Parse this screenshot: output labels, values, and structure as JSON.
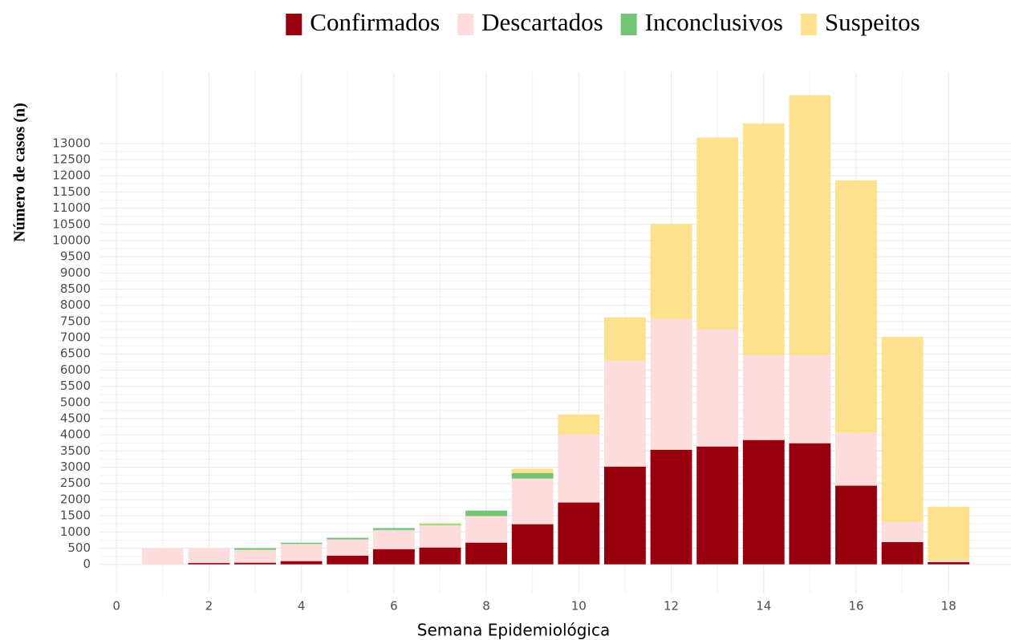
{
  "chart_data": {
    "type": "stacked_bar",
    "x_label": "Semana Epidemiológica",
    "y_label": "Número de casos (n)",
    "x": [
      1,
      2,
      3,
      4,
      5,
      6,
      7,
      8,
      9,
      10,
      11,
      12,
      13,
      14,
      15,
      16,
      17,
      18
    ],
    "series": [
      {
        "name": "Confirmados",
        "color": "#99000d",
        "values": [
          0,
          40,
          50,
          100,
          270,
          470,
          520,
          670,
          1240,
          1910,
          3020,
          3540,
          3640,
          3840,
          3740,
          2430,
          690,
          70
        ]
      },
      {
        "name": "Descartados",
        "color": "#fcdcdc",
        "values": [
          500,
          460,
          400,
          530,
          500,
          590,
          690,
          820,
          1410,
          2100,
          3270,
          4040,
          3620,
          2620,
          2720,
          1630,
          620,
          50
        ]
      },
      {
        "name": "Inconclusivos",
        "color": "#74c476",
        "values": [
          0,
          0,
          50,
          40,
          50,
          60,
          30,
          170,
          170,
          0,
          0,
          0,
          0,
          0,
          0,
          0,
          0,
          0
        ]
      },
      {
        "name": "Suspeitos",
        "color": "#fde18f",
        "values": [
          0,
          0,
          0,
          0,
          0,
          0,
          40,
          0,
          130,
          620,
          1340,
          2940,
          5920,
          7160,
          8030,
          7800,
          5720,
          1660
        ]
      }
    ],
    "xlim": [
      -0.35,
      19.35
    ],
    "xticks": [
      0,
      2,
      4,
      6,
      8,
      10,
      12,
      14,
      16,
      18
    ],
    "ylim": [
      -900,
      15200
    ],
    "yticks": [
      0,
      500,
      1000,
      1500,
      2000,
      2500,
      3000,
      3500,
      4000,
      4500,
      5000,
      5500,
      6000,
      6500,
      7000,
      7500,
      8000,
      8500,
      9000,
      9500,
      10000,
      10500,
      11000,
      11500,
      12000,
      12500,
      13000
    ],
    "grid": true,
    "legend_position": "top"
  }
}
